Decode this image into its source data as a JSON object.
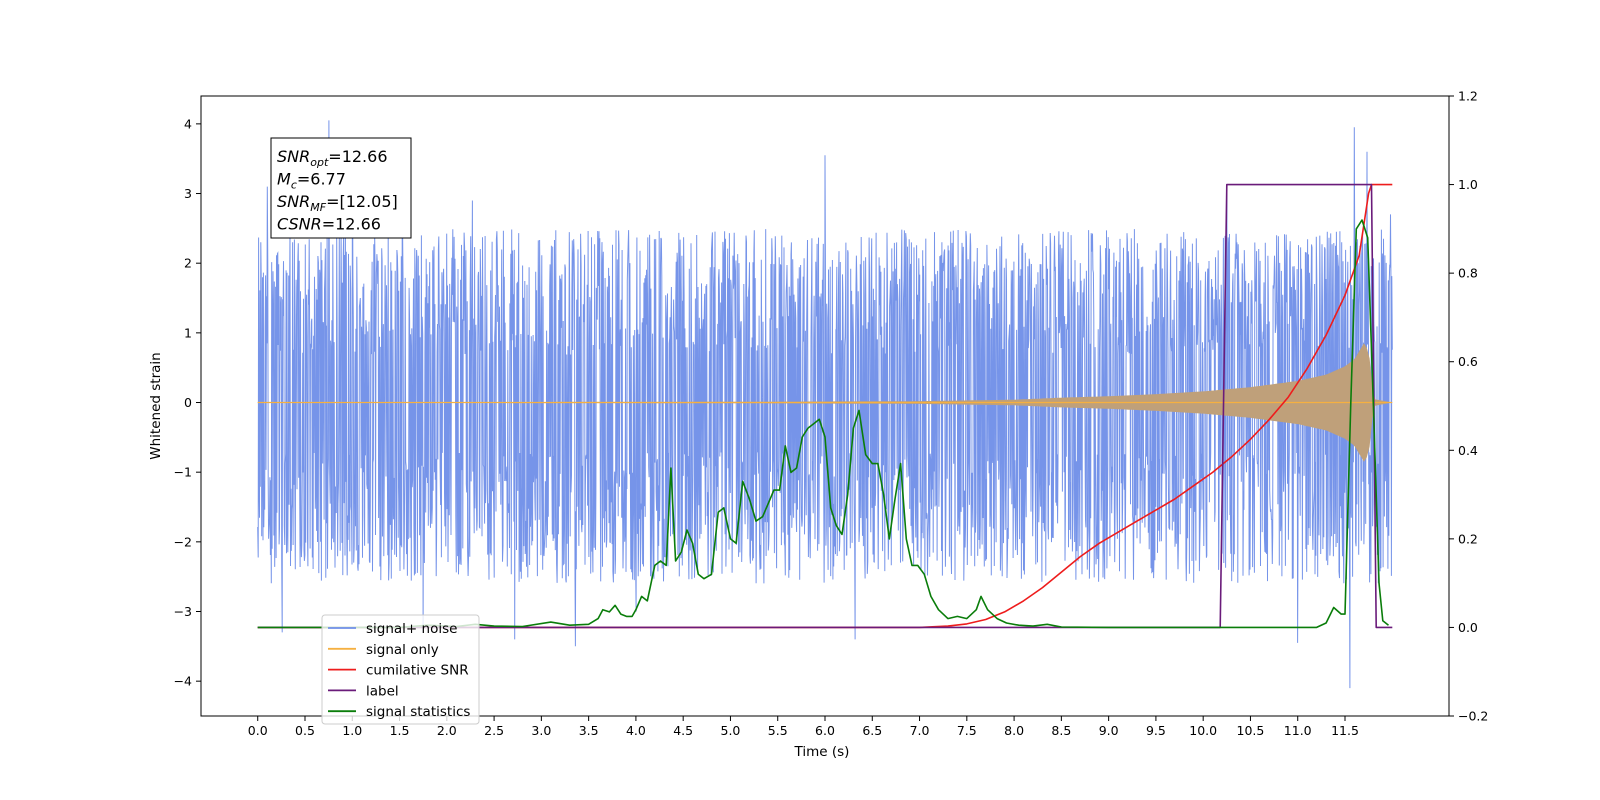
{
  "chart_data": {
    "type": "line",
    "title": "",
    "xlabel": "Time (s)",
    "ylabel": "Whitened strain",
    "xlim": [
      -0.6,
      12.6
    ],
    "ylim": [
      -4.5,
      4.4
    ],
    "y2lim": [
      -0.2,
      1.2
    ],
    "x_ticks": [
      0.0,
      0.5,
      1.0,
      1.5,
      2.0,
      2.5,
      3.0,
      3.5,
      4.0,
      4.5,
      5.0,
      5.5,
      6.0,
      6.5,
      7.0,
      7.5,
      8.0,
      8.5,
      9.0,
      9.5,
      10.0,
      10.5,
      11.0,
      11.5
    ],
    "x_tick_labels": [
      "0.0",
      "0.5",
      "1.0",
      "1.5",
      "2.0",
      "2.5",
      "3.0",
      "3.5",
      "4.0",
      "4.5",
      "5.0",
      "5.5",
      "6.0",
      "6.5",
      "7.0",
      "7.5",
      "8.0",
      "8.5",
      "9.0",
      "9.5",
      "10.0",
      "10.5",
      "11.0",
      "11.5"
    ],
    "y_ticks": [
      -4,
      -3,
      -2,
      -1,
      0,
      1,
      2,
      3,
      4
    ],
    "y_tick_labels": [
      "−4",
      "−3",
      "−2",
      "−1",
      "0",
      "1",
      "2",
      "3",
      "4"
    ],
    "y2_ticks": [
      -0.2,
      0.0,
      0.2,
      0.4,
      0.6,
      0.8,
      1.0,
      1.2
    ],
    "y2_tick_labels": [
      "−0.2",
      "0.0",
      "0.2",
      "0.4",
      "0.6",
      "0.8",
      "1.0",
      "1.2"
    ],
    "grid": false,
    "legend_position": "lower-left",
    "annotation": {
      "lines": [
        {
          "base": "SNR",
          "sub": "opt",
          "value": "=12.66"
        },
        {
          "base": "M",
          "sub": "c",
          "value": "=6.77"
        },
        {
          "base": "SNR",
          "sub": "MF",
          "value": "=[12.05]"
        },
        {
          "base": "CSNR",
          "sub": "",
          "value": "=12.66"
        }
      ]
    },
    "series": [
      {
        "name": "signal+ noise",
        "axis": "left",
        "color": "#6f8ee8",
        "description_range": [
          -2.6,
          2.5
        ],
        "x_range": [
          0.0,
          12.0
        ],
        "peaks": [
          {
            "x": 0.03,
            "y": 2.3
          },
          {
            "x": 0.1,
            "y": 3.1
          },
          {
            "x": 0.26,
            "y": -3.3
          },
          {
            "x": 0.75,
            "y": 4.05
          },
          {
            "x": 1.0,
            "y": 3.6
          },
          {
            "x": 1.75,
            "y": -3.3
          },
          {
            "x": 2.27,
            "y": 2.9
          },
          {
            "x": 2.72,
            "y": -3.4
          },
          {
            "x": 3.36,
            "y": -3.5
          },
          {
            "x": 4.0,
            "y": -3.0
          },
          {
            "x": 6.0,
            "y": 3.55
          },
          {
            "x": 6.32,
            "y": -3.4
          },
          {
            "x": 10.25,
            "y": 3.0
          },
          {
            "x": 11.0,
            "y": -3.45
          },
          {
            "x": 11.55,
            "y": -4.1
          },
          {
            "x": 11.6,
            "y": 3.95
          },
          {
            "x": 11.73,
            "y": 3.6
          },
          {
            "x": 11.98,
            "y": 2.7
          }
        ]
      },
      {
        "name": "signal only",
        "axis": "left",
        "color": "#f5b041",
        "fill_color": "#bfa07a",
        "envelope": {
          "x": [
            0.0,
            5.0,
            7.0,
            8.0,
            8.5,
            9.0,
            9.5,
            10.0,
            10.5,
            11.0,
            11.3,
            11.5,
            11.6,
            11.7,
            11.75,
            11.78,
            11.8,
            12.0
          ],
          "y": [
            0.005,
            0.01,
            0.02,
            0.04,
            0.07,
            0.09,
            0.12,
            0.16,
            0.22,
            0.31,
            0.4,
            0.52,
            0.62,
            0.85,
            0.75,
            0.4,
            0.05,
            0.0
          ]
        }
      },
      {
        "name": "cumilative SNR",
        "axis": "right",
        "color": "#ee1c1c",
        "x": [
          0.0,
          7.0,
          7.3,
          7.5,
          7.7,
          7.9,
          8.1,
          8.3,
          8.5,
          8.7,
          8.9,
          9.1,
          9.3,
          9.5,
          9.7,
          9.9,
          10.1,
          10.3,
          10.5,
          10.7,
          10.9,
          11.1,
          11.3,
          11.5,
          11.65,
          11.75,
          11.78,
          12.0
        ],
        "y": [
          0.0,
          0.0,
          0.003,
          0.008,
          0.018,
          0.035,
          0.06,
          0.09,
          0.125,
          0.16,
          0.19,
          0.215,
          0.24,
          0.265,
          0.29,
          0.32,
          0.35,
          0.385,
          0.425,
          0.47,
          0.52,
          0.585,
          0.66,
          0.75,
          0.84,
          0.98,
          1.0,
          1.0
        ]
      },
      {
        "name": "label",
        "axis": "right",
        "color": "#6a1b7a",
        "x": [
          0.0,
          10.18,
          10.25,
          11.78,
          11.83,
          12.0
        ],
        "y": [
          0.0,
          0.0,
          1.0,
          1.0,
          0.0,
          0.0
        ]
      },
      {
        "name": "signal statistics",
        "axis": "right",
        "color": "#0a7d0a",
        "x": [
          0.0,
          1.5,
          1.8,
          2.1,
          2.3,
          2.5,
          2.8,
          3.1,
          3.3,
          3.5,
          3.6,
          3.65,
          3.72,
          3.78,
          3.84,
          3.9,
          3.96,
          4.0,
          4.06,
          4.12,
          4.2,
          4.26,
          4.32,
          4.37,
          4.42,
          4.48,
          4.54,
          4.6,
          4.66,
          4.72,
          4.8,
          4.87,
          4.93,
          5.0,
          5.06,
          5.13,
          5.2,
          5.27,
          5.34,
          5.4,
          5.46,
          5.52,
          5.58,
          5.64,
          5.7,
          5.76,
          5.82,
          5.88,
          5.94,
          6.0,
          6.06,
          6.12,
          6.18,
          6.24,
          6.3,
          6.36,
          6.43,
          6.5,
          6.56,
          6.62,
          6.68,
          6.74,
          6.8,
          6.86,
          6.92,
          6.98,
          7.05,
          7.12,
          7.2,
          7.3,
          7.4,
          7.5,
          7.6,
          7.65,
          7.72,
          7.82,
          7.92,
          8.05,
          8.2,
          8.35,
          8.5,
          9.0,
          10.0,
          11.0,
          11.2,
          11.3,
          11.38,
          11.46,
          11.5,
          11.56,
          11.62,
          11.68,
          11.74,
          11.8,
          11.86,
          11.9,
          11.96
        ],
        "y": [
          0.0,
          0.0,
          0.005,
          0.002,
          0.007,
          0.003,
          0.002,
          0.012,
          0.005,
          0.007,
          0.02,
          0.04,
          0.035,
          0.05,
          0.03,
          0.025,
          0.025,
          0.04,
          0.07,
          0.06,
          0.14,
          0.15,
          0.14,
          0.36,
          0.15,
          0.17,
          0.22,
          0.19,
          0.12,
          0.11,
          0.12,
          0.26,
          0.27,
          0.2,
          0.19,
          0.33,
          0.29,
          0.24,
          0.25,
          0.28,
          0.31,
          0.31,
          0.41,
          0.35,
          0.36,
          0.43,
          0.45,
          0.46,
          0.47,
          0.43,
          0.27,
          0.23,
          0.21,
          0.3,
          0.45,
          0.49,
          0.39,
          0.37,
          0.37,
          0.3,
          0.2,
          0.29,
          0.37,
          0.2,
          0.14,
          0.14,
          0.12,
          0.07,
          0.04,
          0.02,
          0.025,
          0.02,
          0.04,
          0.07,
          0.04,
          0.02,
          0.01,
          0.005,
          0.003,
          0.007,
          0.001,
          0.0,
          0.0,
          0.0,
          0.0,
          0.01,
          0.045,
          0.03,
          0.03,
          0.5,
          0.9,
          0.92,
          0.88,
          0.5,
          0.1,
          0.015,
          0.005
        ]
      }
    ]
  },
  "legend": {
    "items": [
      {
        "label": "signal+ noise",
        "color": "#6f8ee8"
      },
      {
        "label": "signal only",
        "color": "#f5b041"
      },
      {
        "label": "cumilative SNR",
        "color": "#ee1c1c"
      },
      {
        "label": "label",
        "color": "#6a1b7a"
      },
      {
        "label": "signal statistics",
        "color": "#0a7d0a"
      }
    ]
  }
}
